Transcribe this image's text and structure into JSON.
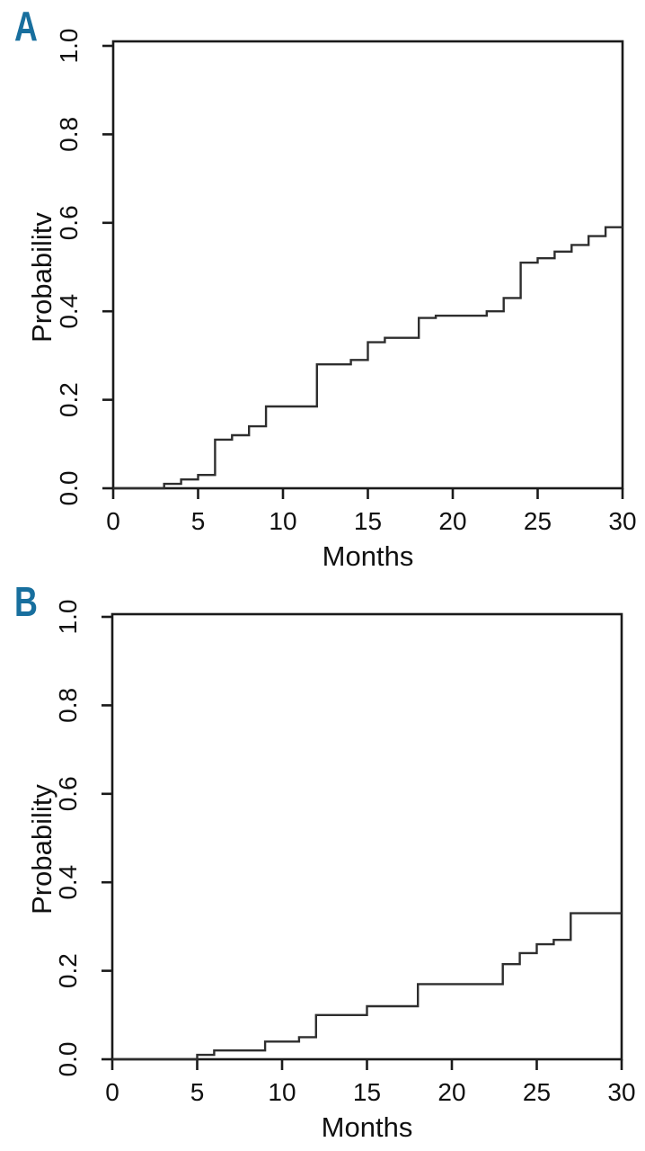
{
  "figure": {
    "background": "#ffffff",
    "accent_color": "#186f9e",
    "curve_color": "#2e2e2e",
    "axis_color": "#1a1a1a"
  },
  "panels": [
    {
      "label": "A",
      "label_color": "#186f9e"
    },
    {
      "label": "B",
      "label_color": "#186f9e"
    }
  ],
  "chart_data": [
    {
      "type": "line",
      "subtype": "step-cumulative-incidence",
      "panel": "A",
      "title": "",
      "xlabel": "Months",
      "ylabel": "Probabilitv",
      "xlim": [
        0,
        30
      ],
      "ylim": [
        0,
        1.0
      ],
      "x_ticks": [
        0,
        5,
        10,
        15,
        20,
        25,
        30
      ],
      "y_ticks": [
        "0.0",
        "0.2",
        "0.4",
        "0.6",
        "0.8",
        "1.0"
      ],
      "grid": false,
      "legend": false,
      "steps": [
        [
          0,
          0
        ],
        [
          3,
          0.01
        ],
        [
          4,
          0.02
        ],
        [
          5,
          0.03
        ],
        [
          6,
          0.11
        ],
        [
          7,
          0.12
        ],
        [
          8,
          0.14
        ],
        [
          9,
          0.185
        ],
        [
          12,
          0.28
        ],
        [
          14,
          0.29
        ],
        [
          15,
          0.33
        ],
        [
          16,
          0.34
        ],
        [
          18,
          0.385
        ],
        [
          19,
          0.39
        ],
        [
          22,
          0.4
        ],
        [
          23,
          0.43
        ],
        [
          24,
          0.51
        ],
        [
          25,
          0.52
        ],
        [
          26,
          0.535
        ],
        [
          27,
          0.55
        ],
        [
          28,
          0.57
        ],
        [
          29,
          0.59
        ],
        [
          30,
          0.59
        ]
      ]
    },
    {
      "type": "line",
      "subtype": "step-cumulative-incidence",
      "panel": "B",
      "title": "",
      "xlabel": "Months",
      "ylabel": "Probability",
      "xlim": [
        0,
        30
      ],
      "ylim": [
        0,
        1.0
      ],
      "x_ticks": [
        0,
        5,
        10,
        15,
        20,
        25,
        30
      ],
      "y_ticks": [
        "0.0",
        "0.2",
        "0.4",
        "0.6",
        "0.8",
        "1.0"
      ],
      "grid": false,
      "legend": false,
      "steps": [
        [
          0,
          0
        ],
        [
          5,
          0.01
        ],
        [
          6,
          0.02
        ],
        [
          9,
          0.04
        ],
        [
          11,
          0.05
        ],
        [
          12,
          0.1
        ],
        [
          15,
          0.12
        ],
        [
          18,
          0.17
        ],
        [
          23,
          0.215
        ],
        [
          24,
          0.24
        ],
        [
          25,
          0.26
        ],
        [
          26,
          0.27
        ],
        [
          27,
          0.33
        ],
        [
          30,
          0.33
        ]
      ]
    }
  ]
}
